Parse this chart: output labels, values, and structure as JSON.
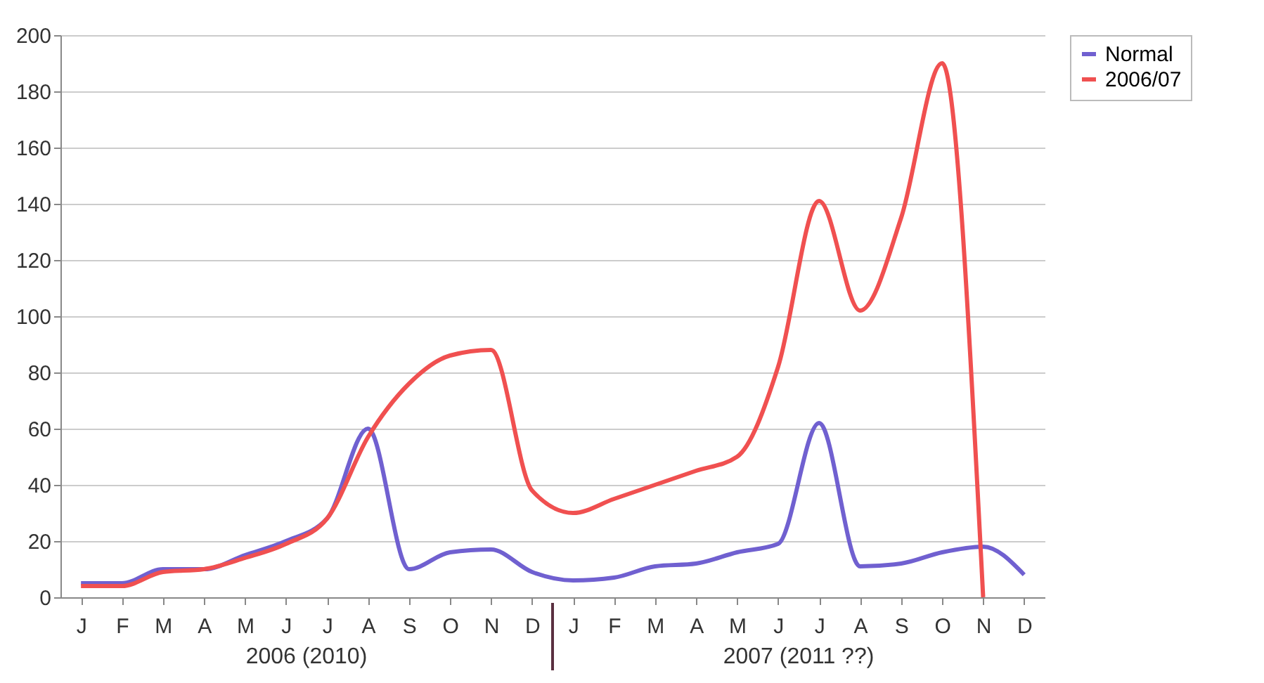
{
  "chart_data": {
    "type": "line",
    "categories": [
      "J",
      "F",
      "M",
      "A",
      "M",
      "J",
      "J",
      "A",
      "S",
      "O",
      "N",
      "D",
      "J",
      "F",
      "M",
      "A",
      "M",
      "J",
      "J",
      "A",
      "S",
      "O",
      "N",
      "D"
    ],
    "ylim": [
      0,
      200
    ],
    "yticks": [
      0,
      20,
      40,
      60,
      80,
      100,
      120,
      140,
      160,
      180,
      200
    ],
    "grid": "y",
    "legend": "right",
    "line_style": "solid",
    "marker": "none",
    "series": [
      {
        "name": "Normal",
        "color": "#7060d0",
        "values": [
          5,
          5,
          10,
          10,
          15,
          20,
          28,
          60,
          10,
          16,
          17,
          9,
          6,
          7,
          11,
          12,
          16,
          19,
          62,
          11,
          12,
          16,
          18,
          8
        ]
      },
      {
        "name": "2006/07",
        "color": "#f05050",
        "values": [
          4,
          4,
          9,
          10,
          14,
          19,
          28,
          57,
          76,
          86,
          88,
          38,
          30,
          35,
          40,
          45,
          50,
          82,
          141,
          102,
          135,
          190,
          0,
          null
        ]
      }
    ],
    "annotations": [
      "2006 (2010)",
      "2007 (2011 ??)"
    ]
  }
}
